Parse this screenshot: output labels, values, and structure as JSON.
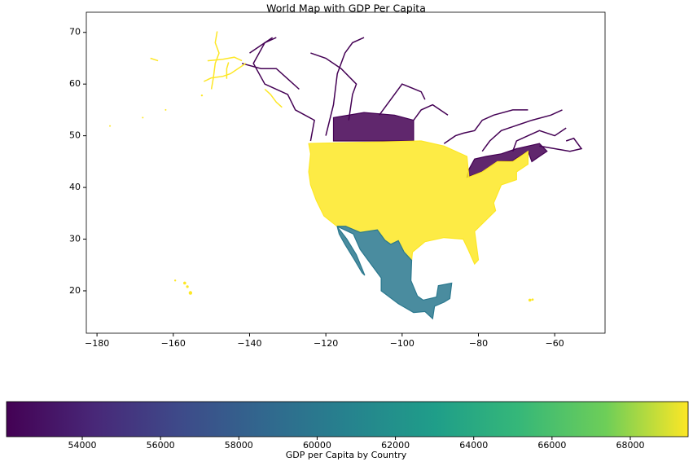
{
  "chart_data": {
    "type": "map",
    "title": "World Map with GDP Per Capita",
    "values": [
      52065,
      69477,
      59900
    ],
    "xlim": [
      -182.8,
      -46.8
    ],
    "ylim": [
      11.8,
      73.9
    ],
    "xticks": [
      {
        "value": -180,
        "label": "−180"
      },
      {
        "value": -160,
        "label": "−160"
      },
      {
        "value": -140,
        "label": "−140"
      },
      {
        "value": -120,
        "label": "−120"
      },
      {
        "value": -100,
        "label": "−100"
      },
      {
        "value": -80,
        "label": "−80"
      },
      {
        "value": -60,
        "label": "−60"
      }
    ],
    "yticks": [
      20,
      30,
      40,
      50,
      60,
      70
    ],
    "colorbar": {
      "label": "GDP per Capita by Country",
      "clim": [
        52065,
        69477
      ],
      "ticks": [
        54000,
        56000,
        58000,
        60000,
        62000,
        64000,
        66000,
        68000
      ],
      "colormap": "viridis"
    }
  }
}
